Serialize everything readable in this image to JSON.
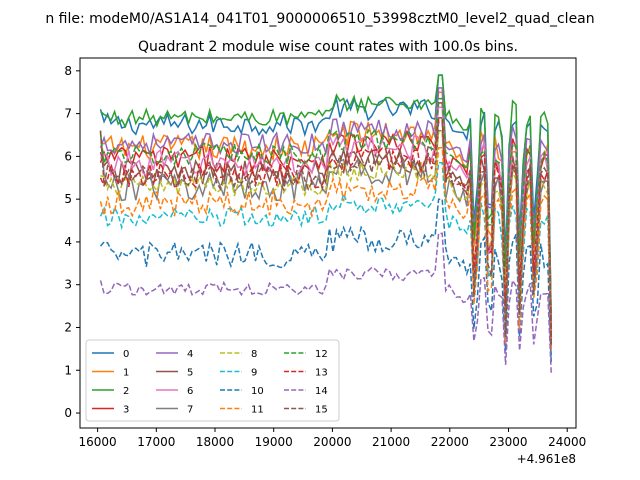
{
  "chart_data": {
    "type": "line",
    "suptitle": "n file: modeM0/AS1A14_041T01_9000006510_53998cztM0_level2_quad_clean",
    "title": "Quadrant 2 module wise count rates with 100.0s bins.",
    "xlabel": "",
    "ylabel": "",
    "x_offset_label": "+4.961e8",
    "xlim": [
      15700,
      24150
    ],
    "ylim": [
      -0.35,
      8.3
    ],
    "x_ticks": [
      16000,
      17000,
      18000,
      19000,
      20000,
      21000,
      22000,
      23000,
      24000
    ],
    "y_ticks": [
      0,
      1,
      2,
      3,
      4,
      5,
      6,
      7,
      8
    ],
    "x_tick_labels": [
      "16000",
      "17000",
      "18000",
      "19000",
      "20000",
      "21000",
      "22000",
      "23000",
      "24000"
    ],
    "y_tick_labels": [
      "0",
      "1",
      "2",
      "3",
      "4",
      "5",
      "6",
      "7",
      "8"
    ],
    "grid": false,
    "legend": {
      "placement": "lower-left",
      "columns": 4
    },
    "x_range": [
      16050,
      23750
    ],
    "dip_times": [
      22430,
      22680,
      22950,
      23200,
      23450,
      23750
    ],
    "series": [
      {
        "name": "0",
        "color": "#1f77b4",
        "dash": "solid",
        "level": 6.75,
        "noise": 0.25,
        "start": 7.1
      },
      {
        "name": "1",
        "color": "#ff7f0e",
        "dash": "solid",
        "level": 6.2,
        "noise": 0.3,
        "start": 6.3
      },
      {
        "name": "2",
        "color": "#2ca02c",
        "dash": "solid",
        "level": 6.9,
        "noise": 0.2,
        "start": 7.05
      },
      {
        "name": "3",
        "color": "#d62728",
        "dash": "solid",
        "level": 5.95,
        "noise": 0.3,
        "start": 5.85
      },
      {
        "name": "4",
        "color": "#9467bd",
        "dash": "solid",
        "level": 6.3,
        "noise": 0.25,
        "start": 6.2
      },
      {
        "name": "5",
        "color": "#8c564b",
        "dash": "solid",
        "level": 5.6,
        "noise": 0.3,
        "start": 6.1
      },
      {
        "name": "6",
        "color": "#e377c2",
        "dash": "solid",
        "level": 5.85,
        "noise": 0.3,
        "start": 5.95
      },
      {
        "name": "7",
        "color": "#7f7f7f",
        "dash": "solid",
        "level": 5.3,
        "noise": 0.35,
        "start": 6.6
      },
      {
        "name": "8",
        "color": "#bcbd22",
        "dash": "dashed",
        "level": 5.3,
        "noise": 0.25,
        "start": 5.55
      },
      {
        "name": "9",
        "color": "#17becf",
        "dash": "dashed",
        "level": 4.55,
        "noise": 0.25,
        "start": 4.6
      },
      {
        "name": "10",
        "color": "#1f77b4",
        "dash": "dashed",
        "level": 3.7,
        "noise": 0.3,
        "start": 3.9
      },
      {
        "name": "11",
        "color": "#ff7f0e",
        "dash": "dashed",
        "level": 4.9,
        "noise": 0.3,
        "start": 4.95
      },
      {
        "name": "12",
        "color": "#2ca02c",
        "dash": "dashed",
        "level": 6.05,
        "noise": 0.25,
        "start": 6.55
      },
      {
        "name": "13",
        "color": "#d62728",
        "dash": "dashed",
        "level": 5.55,
        "noise": 0.3,
        "start": 5.5
      },
      {
        "name": "14",
        "color": "#9467bd",
        "dash": "dashed",
        "level": 2.9,
        "noise": 0.15,
        "start": 3.1
      },
      {
        "name": "15",
        "color": "#8c564b",
        "dash": "dashed",
        "level": 5.5,
        "noise": 0.3,
        "start": 6.6
      }
    ]
  }
}
